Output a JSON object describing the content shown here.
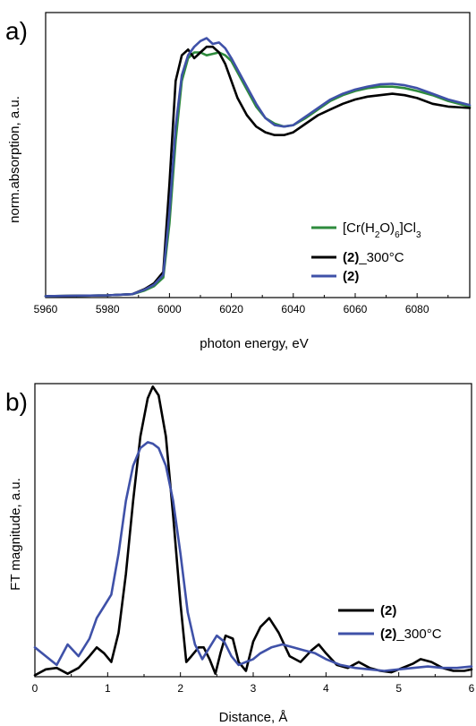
{
  "chart_data": [
    {
      "panel": "a)",
      "type": "line",
      "xlabel": "photon energy, eV",
      "ylabel": "norm.absorption, a.u.",
      "xlim": [
        5960,
        6097
      ],
      "ylim": [
        0,
        1.0
      ],
      "xticks": [
        "5960",
        "5980",
        "6000",
        "6020",
        "6040",
        "6060",
        "6080"
      ],
      "xtick_values": [
        5960,
        5980,
        6000,
        6020,
        6040,
        6060,
        6080
      ],
      "yticks_shown": false,
      "legend_position": "lower-right",
      "series": [
        {
          "label_parts": [
            {
              "text": "[Cr(H",
              "style": "normal"
            },
            {
              "text": "2",
              "style": "sub"
            },
            {
              "text": "O)",
              "style": "normal"
            },
            {
              "text": "6",
              "style": "sub"
            },
            {
              "text": "]Cl",
              "style": "normal"
            },
            {
              "text": "3",
              "style": "sub"
            }
          ],
          "color": "#2e8b3d",
          "x": [
            5960,
            5980,
            5988,
            5992,
            5995,
            5998,
            6000,
            6002,
            6004,
            6006,
            6008,
            6010,
            6012,
            6014,
            6016,
            6018,
            6020,
            6022,
            6025,
            6028,
            6031,
            6034,
            6037,
            6040,
            6044,
            6048,
            6052,
            6056,
            6060,
            6064,
            6068,
            6072,
            6076,
            6080,
            6085,
            6090,
            6097
          ],
          "y": [
            0.005,
            0.008,
            0.012,
            0.025,
            0.04,
            0.07,
            0.26,
            0.55,
            0.76,
            0.84,
            0.86,
            0.86,
            0.85,
            0.855,
            0.86,
            0.85,
            0.83,
            0.79,
            0.73,
            0.67,
            0.63,
            0.61,
            0.6,
            0.605,
            0.63,
            0.66,
            0.69,
            0.71,
            0.725,
            0.735,
            0.74,
            0.74,
            0.735,
            0.725,
            0.71,
            0.69,
            0.67
          ]
        },
        {
          "label_parts": [
            {
              "text": "(2)",
              "style": "bold"
            },
            {
              "text": "_300°C",
              "style": "normal"
            }
          ],
          "color": "#000000",
          "x": [
            5960,
            5980,
            5988,
            5992,
            5995,
            5998,
            6000,
            6002,
            6004,
            6006,
            6008,
            6010,
            6012,
            6014,
            6016,
            6018,
            6020,
            6022,
            6025,
            6028,
            6031,
            6034,
            6037,
            6040,
            6044,
            6048,
            6052,
            6056,
            6060,
            6064,
            6068,
            6072,
            6076,
            6080,
            6085,
            6090,
            6097
          ],
          "y": [
            0.005,
            0.008,
            0.012,
            0.03,
            0.05,
            0.09,
            0.4,
            0.76,
            0.85,
            0.87,
            0.84,
            0.86,
            0.88,
            0.88,
            0.86,
            0.82,
            0.76,
            0.7,
            0.64,
            0.6,
            0.58,
            0.57,
            0.57,
            0.58,
            0.61,
            0.64,
            0.66,
            0.68,
            0.695,
            0.705,
            0.71,
            0.715,
            0.71,
            0.7,
            0.68,
            0.67,
            0.665
          ]
        },
        {
          "label_parts": [
            {
              "text": "(2)",
              "style": "bold"
            }
          ],
          "color": "#3f51a8",
          "x": [
            5960,
            5980,
            5988,
            5992,
            5995,
            5998,
            6000,
            6002,
            6004,
            6006,
            6008,
            6010,
            6012,
            6014,
            6016,
            6018,
            6020,
            6022,
            6025,
            6028,
            6031,
            6034,
            6037,
            6040,
            6044,
            6048,
            6052,
            6056,
            6060,
            6064,
            6068,
            6072,
            6076,
            6080,
            6085,
            6090,
            6097
          ],
          "y": [
            0.005,
            0.008,
            0.012,
            0.028,
            0.045,
            0.08,
            0.3,
            0.6,
            0.78,
            0.85,
            0.88,
            0.9,
            0.91,
            0.89,
            0.895,
            0.875,
            0.84,
            0.8,
            0.74,
            0.68,
            0.63,
            0.605,
            0.6,
            0.605,
            0.635,
            0.665,
            0.695,
            0.715,
            0.73,
            0.74,
            0.748,
            0.75,
            0.745,
            0.735,
            0.715,
            0.695,
            0.675
          ]
        }
      ]
    },
    {
      "panel": "b)",
      "type": "line",
      "xlabel": "Distance, Å",
      "ylabel": "FT magnitude, a.u.",
      "xlim": [
        0,
        6
      ],
      "ylim": [
        0,
        1.0
      ],
      "xticks": [
        "0",
        "1",
        "2",
        "3",
        "4",
        "5",
        "6"
      ],
      "xtick_values": [
        0,
        1,
        2,
        3,
        4,
        5,
        6
      ],
      "yticks_shown": false,
      "legend_position": "lower-right",
      "series": [
        {
          "label_parts": [
            {
              "text": "(2)",
              "style": "bold"
            }
          ],
          "color": "#000000",
          "x": [
            0,
            0.15,
            0.3,
            0.45,
            0.6,
            0.75,
            0.85,
            0.95,
            1.05,
            1.15,
            1.25,
            1.35,
            1.45,
            1.55,
            1.62,
            1.7,
            1.8,
            1.9,
            2.0,
            2.08,
            2.15,
            2.25,
            2.32,
            2.4,
            2.48,
            2.55,
            2.62,
            2.72,
            2.8,
            2.9,
            3.0,
            3.1,
            3.22,
            3.35,
            3.5,
            3.65,
            3.8,
            3.9,
            4.0,
            4.15,
            4.3,
            4.45,
            4.6,
            4.75,
            4.9,
            5.05,
            5.2,
            5.3,
            5.45,
            5.6,
            5.75,
            5.9,
            6.0
          ],
          "y": [
            0.005,
            0.025,
            0.03,
            0.01,
            0.03,
            0.07,
            0.1,
            0.08,
            0.05,
            0.15,
            0.35,
            0.6,
            0.82,
            0.95,
            0.99,
            0.96,
            0.82,
            0.55,
            0.25,
            0.05,
            0.07,
            0.1,
            0.1,
            0.06,
            0.01,
            0.08,
            0.14,
            0.13,
            0.05,
            0.02,
            0.12,
            0.17,
            0.2,
            0.15,
            0.07,
            0.05,
            0.09,
            0.11,
            0.08,
            0.04,
            0.03,
            0.05,
            0.03,
            0.02,
            0.015,
            0.03,
            0.045,
            0.06,
            0.05,
            0.03,
            0.02,
            0.02,
            0.025
          ]
        },
        {
          "label_parts": [
            {
              "text": "(2)",
              "style": "bold"
            },
            {
              "text": "_300°C",
              "style": "normal"
            }
          ],
          "color": "#3f51a8",
          "x": [
            0,
            0.15,
            0.3,
            0.45,
            0.6,
            0.75,
            0.85,
            0.95,
            1.05,
            1.15,
            1.25,
            1.35,
            1.45,
            1.55,
            1.62,
            1.7,
            1.8,
            1.9,
            2.0,
            2.1,
            2.2,
            2.3,
            2.4,
            2.5,
            2.6,
            2.7,
            2.8,
            2.9,
            3.0,
            3.1,
            3.25,
            3.4,
            3.55,
            3.7,
            3.85,
            4.0,
            4.2,
            4.4,
            4.6,
            4.8,
            5.0,
            5.2,
            5.4,
            5.6,
            5.8,
            6.0
          ],
          "y": [
            0.1,
            0.07,
            0.04,
            0.11,
            0.07,
            0.13,
            0.2,
            0.24,
            0.28,
            0.42,
            0.6,
            0.72,
            0.78,
            0.8,
            0.795,
            0.78,
            0.72,
            0.6,
            0.42,
            0.22,
            0.11,
            0.06,
            0.1,
            0.14,
            0.12,
            0.07,
            0.04,
            0.05,
            0.06,
            0.08,
            0.1,
            0.11,
            0.1,
            0.09,
            0.08,
            0.06,
            0.04,
            0.03,
            0.025,
            0.02,
            0.025,
            0.03,
            0.035,
            0.03,
            0.03,
            0.035
          ]
        }
      ]
    }
  ]
}
